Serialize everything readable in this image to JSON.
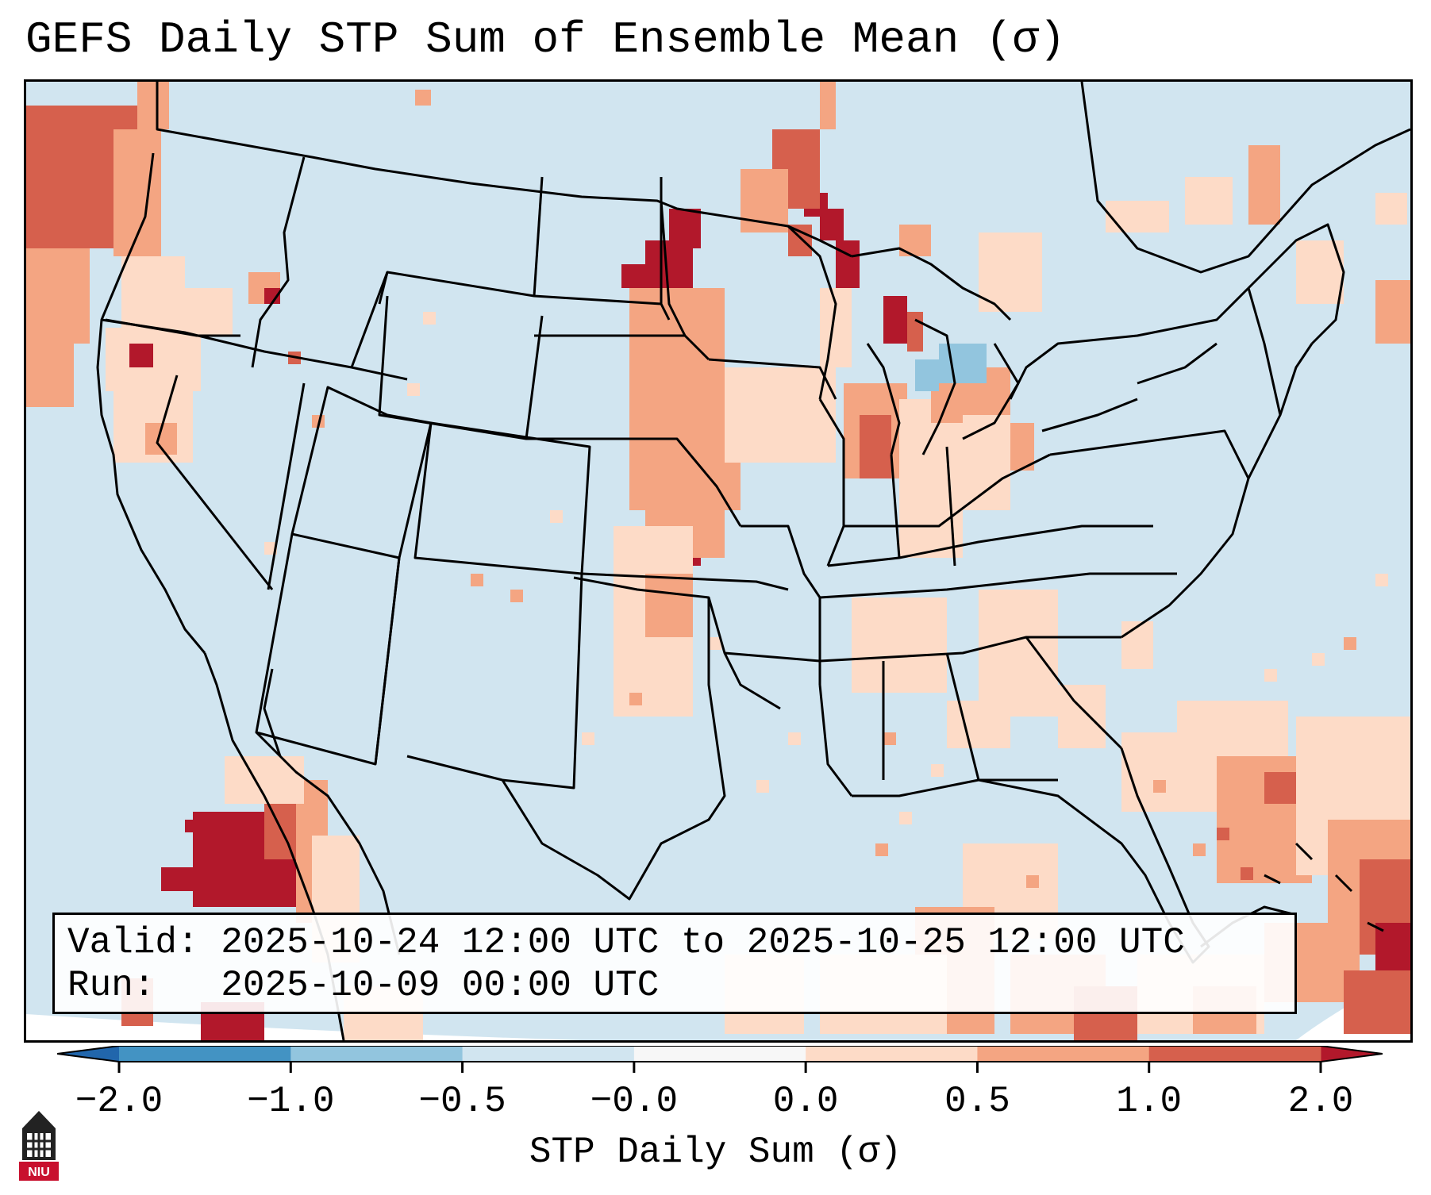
{
  "title": "GEFS Daily STP Sum of Ensemble Mean (σ)",
  "info": {
    "valid_label": "Valid:",
    "valid_value": "2025-10-24 12:00 UTC to 2025-10-25 12:00 UTC",
    "run_label": "Run:",
    "run_value": "2025-10-09 00:00 UTC"
  },
  "colorbar": {
    "label": "STP Daily Sum (σ)",
    "ticks": [
      "−2.0",
      "−1.0",
      "−0.5",
      "−0.0",
      "0.0",
      "0.5",
      "1.0",
      "2.0"
    ],
    "colors": [
      "#4393c3",
      "#92c5de",
      "#d1e5f0",
      "#f7f7f7",
      "#fddbc7",
      "#f4a582",
      "#d6604d"
    ],
    "under_color": "#2166ac",
    "over_color": "#b2182b"
  },
  "map": {
    "background_color": "#d1e5f0",
    "field_levels": {
      "light_red": "#fddbc7",
      "mid_red": "#f4a582",
      "red": "#d6604d",
      "dark_red": "#b2182b",
      "light_blue": "#92c5de"
    },
    "features": [
      "Pacific Northwest coast",
      "Nebraska-South Dakota corridor",
      "Lake Michigan shoreline",
      "Gulf of California",
      "Western Atlantic"
    ]
  },
  "logo": {
    "text": "NIU",
    "color": "#c8102e"
  }
}
